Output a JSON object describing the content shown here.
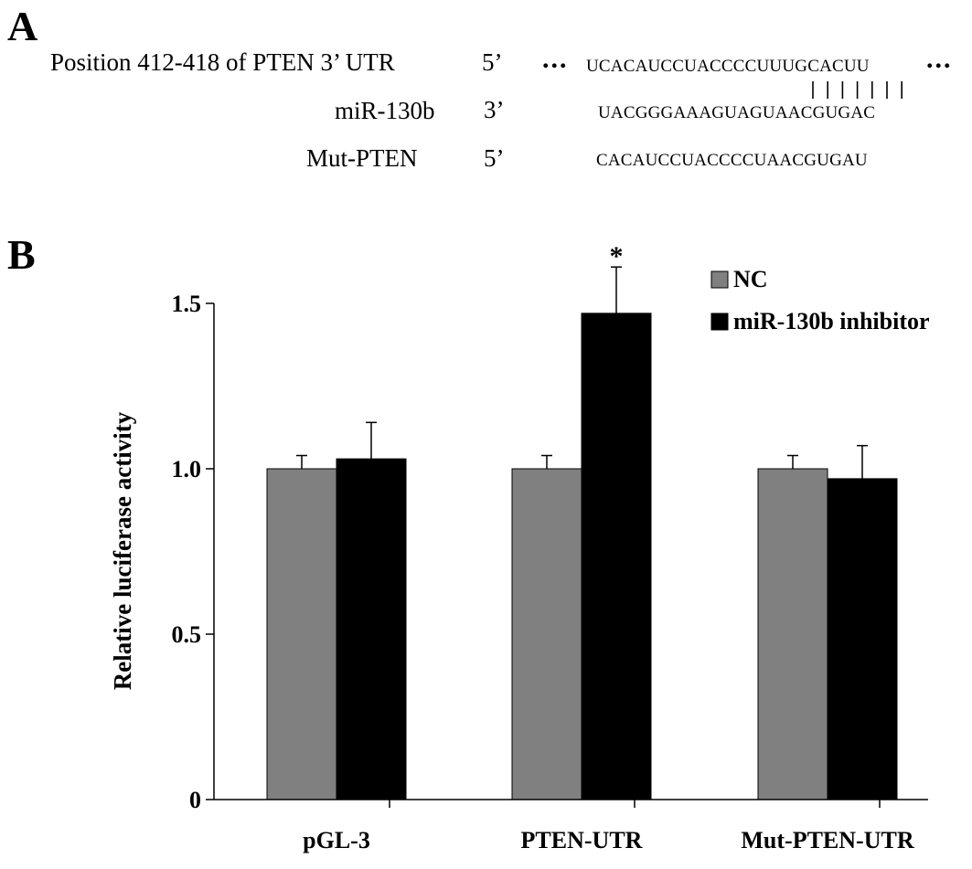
{
  "panelA": {
    "label": "A",
    "rows": [
      {
        "name": "Position 412-418 of PTEN 3’ UTR",
        "prime": "5’",
        "sequence": "UCACAUCCUACCCCUUUGCACUU",
        "dots_left": "...",
        "dots_right": "..."
      },
      {
        "name": "miR-130b",
        "prime": "3’",
        "sequence": "UACGGGAAAGUAGUAACGUGAC"
      },
      {
        "name": "Mut-PTEN",
        "prime": "5’",
        "sequence": "CACAUCCUACCCCUAACGUGAU"
      }
    ],
    "pairing_marks": 7
  },
  "panelB": {
    "label": "B"
  },
  "chart_data": {
    "type": "bar",
    "categories": [
      "pGL-3",
      "PTEN-UTR",
      "Mut-PTEN-UTR"
    ],
    "series": [
      {
        "name": "NC",
        "color": "#808080",
        "values": [
          1.0,
          1.0,
          1.0
        ],
        "errors": [
          0.04,
          0.04,
          0.04
        ]
      },
      {
        "name": "miR-130b inhibitor",
        "color": "#000000",
        "values": [
          1.03,
          1.47,
          0.97
        ],
        "errors": [
          0.11,
          0.14,
          0.1
        ]
      }
    ],
    "annotations": [
      {
        "category": "PTEN-UTR",
        "series": "miR-130b inhibitor",
        "text": "*"
      }
    ],
    "ylabel": "Relative luciferase activity",
    "ylim": [
      0,
      1.5
    ],
    "yticks": [
      0,
      0.5,
      1.0,
      1.5
    ],
    "ytick_labels": [
      "0",
      "0.5",
      "1.0",
      "1.5"
    ],
    "legend_position": "top-right",
    "grid": false
  }
}
